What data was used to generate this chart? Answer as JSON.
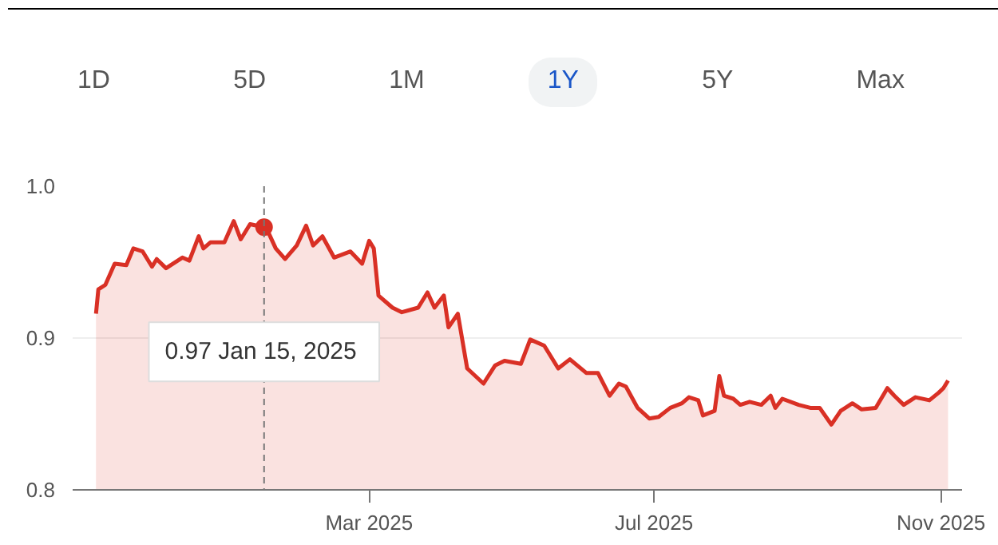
{
  "chart_data": {
    "type": "area",
    "annotations": [
      "1D",
      "5D",
      "1M",
      "1Y",
      "5Y",
      "Max",
      "0.97  Jan 15, 2025"
    ],
    "x": [
      "2024-11-04",
      "2024-11-05",
      "2024-11-08",
      "2024-11-12",
      "2024-11-17",
      "2024-11-20",
      "2024-11-24",
      "2024-11-28",
      "2024-11-30",
      "2024-12-04",
      "2024-12-11",
      "2024-12-14",
      "2024-12-18",
      "2024-12-20",
      "2024-12-23",
      "2024-12-29",
      "2025-01-02",
      "2025-01-05",
      "2025-01-09",
      "2025-01-15",
      "2025-01-17",
      "2025-01-20",
      "2025-01-24",
      "2025-01-29",
      "2025-02-02",
      "2025-02-05",
      "2025-02-09",
      "2025-02-14",
      "2025-02-21",
      "2025-02-26",
      "2025-03-01",
      "2025-03-03",
      "2025-03-05",
      "2025-03-11",
      "2025-03-15",
      "2025-03-22",
      "2025-03-26",
      "2025-03-29",
      "2025-04-02",
      "2025-04-04",
      "2025-04-08",
      "2025-04-12",
      "2025-04-19",
      "2025-04-24",
      "2025-04-28",
      "2025-05-05",
      "2025-05-09",
      "2025-05-15",
      "2025-05-21",
      "2025-05-26",
      "2025-06-02",
      "2025-06-07",
      "2025-06-12",
      "2025-06-16",
      "2025-06-19",
      "2025-06-24",
      "2025-06-29",
      "2025-07-03",
      "2025-07-08",
      "2025-07-13",
      "2025-07-16",
      "2025-07-20",
      "2025-07-22",
      "2025-07-27",
      "2025-07-29",
      "2025-07-31",
      "2025-08-04",
      "2025-08-07",
      "2025-08-11",
      "2025-08-16",
      "2025-08-20",
      "2025-08-22",
      "2025-08-25",
      "2025-09-01",
      "2025-09-06",
      "2025-09-10",
      "2025-09-15",
      "2025-09-19",
      "2025-09-24",
      "2025-09-28",
      "2025-10-04",
      "2025-10-09",
      "2025-10-12",
      "2025-10-16",
      "2025-10-21",
      "2025-10-27",
      "2025-10-31",
      "2025-11-02",
      "2025-11-04"
    ],
    "series": [
      {
        "color": "#d93025",
        "values": [
          0.916,
          0.932,
          0.935,
          0.949,
          0.948,
          0.959,
          0.957,
          0.947,
          0.952,
          0.946,
          0.953,
          0.951,
          0.967,
          0.959,
          0.963,
          0.963,
          0.977,
          0.965,
          0.975,
          0.973,
          0.969,
          0.959,
          0.952,
          0.961,
          0.974,
          0.961,
          0.967,
          0.953,
          0.957,
          0.949,
          0.964,
          0.959,
          0.928,
          0.92,
          0.917,
          0.92,
          0.93,
          0.92,
          0.928,
          0.907,
          0.916,
          0.88,
          0.87,
          0.882,
          0.885,
          0.883,
          0.899,
          0.895,
          0.88,
          0.886,
          0.877,
          0.877,
          0.862,
          0.87,
          0.868,
          0.854,
          0.847,
          0.848,
          0.854,
          0.857,
          0.861,
          0.859,
          0.849,
          0.852,
          0.875,
          0.862,
          0.86,
          0.856,
          0.858,
          0.856,
          0.862,
          0.854,
          0.86,
          0.856,
          0.854,
          0.854,
          0.843,
          0.852,
          0.857,
          0.853,
          0.854,
          0.867,
          0.862,
          0.856,
          0.861,
          0.859,
          0.864,
          0.867,
          0.872
        ]
      }
    ],
    "xlim": [
      "2024-10-25",
      "2025-11-10"
    ],
    "xticks": [
      {
        "value": "2025-03-01",
        "label": "Mar 2025"
      },
      {
        "value": "2025-07-01",
        "label": "Jul 2025"
      },
      {
        "value": "2025-11-01",
        "label": "Nov 2025"
      }
    ],
    "ylim": [
      0.8,
      1.0
    ],
    "yticks": [
      {
        "value": 0.8,
        "label": "0.8"
      },
      {
        "value": 0.9,
        "label": "0.9"
      },
      {
        "value": 1.0,
        "label": "1.0"
      }
    ],
    "ref_lines": [
      {
        "axis": "x",
        "value": "2025-01-15",
        "label": null,
        "color": "#777777",
        "line_style": "dashed"
      }
    ],
    "grid": "y"
  }
}
